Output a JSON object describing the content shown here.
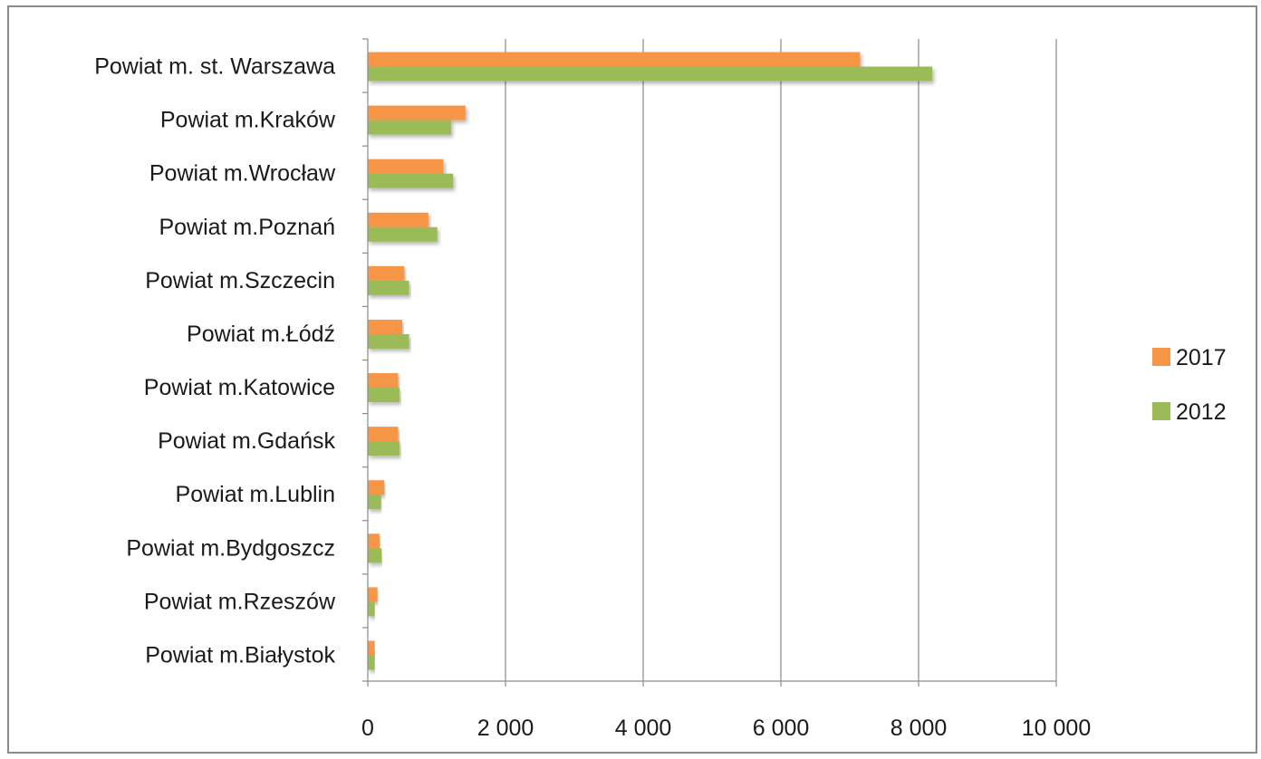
{
  "chart_data": {
    "type": "bar",
    "orientation": "horizontal",
    "categories": [
      "Powiat m. st. Warszawa",
      "Powiat m.Kraków",
      "Powiat m.Wrocław",
      "Powiat m.Poznań",
      "Powiat m.Szczecin",
      "Powiat m.Łódź",
      "Powiat m.Katowice",
      "Powiat m.Gdańsk",
      "Powiat m.Lublin",
      "Powiat m.Bydgoszcz",
      "Powiat m.Rzeszów",
      "Powiat m.Białystok"
    ],
    "series": [
      {
        "name": "2017",
        "color": "#f79646",
        "values": [
          7150,
          1420,
          1100,
          880,
          530,
          500,
          440,
          440,
          240,
          170,
          140,
          100
        ]
      },
      {
        "name": "2012",
        "color": "#9bbb59",
        "values": [
          8200,
          1210,
          1240,
          1010,
          600,
          600,
          460,
          460,
          190,
          200,
          100,
          100
        ]
      }
    ],
    "xlim": [
      0,
      10000
    ],
    "xticks": [
      0,
      2000,
      4000,
      6000,
      8000,
      10000
    ],
    "xtick_labels": [
      "0",
      "2 000",
      "4 000",
      "6 000",
      "8 000",
      "10 000"
    ],
    "grid": true,
    "legend_position": "right",
    "title": "",
    "xlabel": "",
    "ylabel": ""
  }
}
